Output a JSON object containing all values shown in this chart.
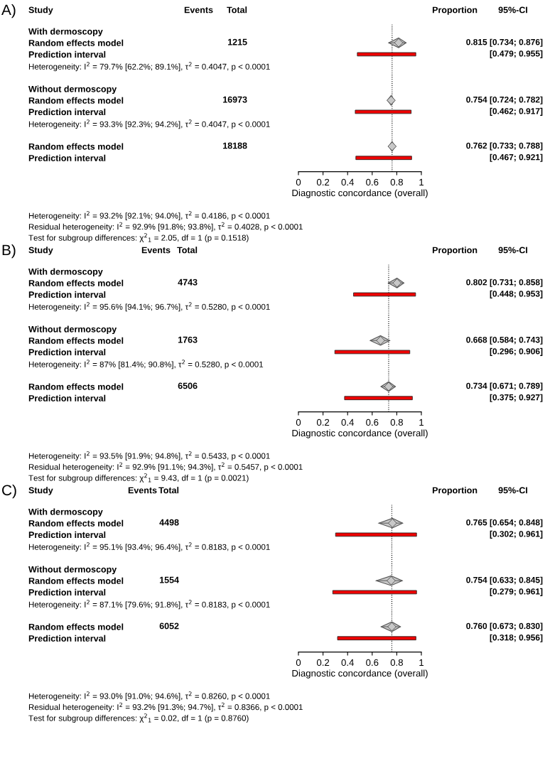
{
  "chart_data": [
    {
      "type": "scatter",
      "title": "A)",
      "orientation": "horizontal",
      "xlabel": "Diagnostic concordance (overall)",
      "xlim": [
        0,
        1
      ],
      "xticks": [
        0,
        0.2,
        0.4,
        0.6,
        0.8,
        1
      ],
      "categories": [
        "With dermoscopy",
        "Random effects model",
        "Prediction interval",
        "Heterogeneity: I$^{2}$ = 79.7% [62.2%; 89.1%], τ$^{2}$ = 0.4047, p < 0.0001",
        null,
        "Without dermoscopy",
        "Random effects model",
        "Prediction interval",
        "Heterogeneity: I$^{2}$ = 93.3% [92.3%; 94.2%], τ$^{2}$ = 0.4047, p < 0.0001",
        null,
        "Random effects model",
        "Prediction interval"
      ],
      "series": [
        {
          "marker": "diamond",
          "color": "#c8c8c8",
          "values": [
            null,
            0.815,
            null,
            null,
            null,
            null,
            0.754,
            null,
            null,
            null,
            0.762,
            null
          ],
          "errors": [
            null,
            [
              0.734,
              0.876
            ],
            null,
            null,
            null,
            null,
            [
              0.724,
              0.782
            ],
            null,
            null,
            null,
            [
              0.733,
              0.788
            ],
            null
          ],
          "value_labels": [
            null,
            "0.815 [0.734; 0.876]",
            null,
            null,
            null,
            null,
            "0.754 [0.724; 0.782]",
            null,
            null,
            null,
            "0.762 [0.733; 0.788]",
            null
          ]
        },
        {
          "type": "bar",
          "color": "#ee0000",
          "values": [
            null,
            null,
            0.476,
            null,
            null,
            null,
            null,
            0.455,
            null,
            null,
            null,
            0.454
          ],
          "base": [
            null,
            null,
            0.479,
            null,
            null,
            null,
            null,
            0.462,
            null,
            null,
            null,
            0.467
          ]
        }
      ],
      "ref_lines": [
        {
          "axis": "x",
          "value": 0.762,
          "color": "#000000",
          "line_style": "dotted"
        }
      ],
      "annotations": [
        "Study",
        "Events",
        "Total",
        "Proportion",
        "95%-CI",
        "1215",
        "16973",
        "18188",
        "[0.479; 0.955]",
        "[0.462; 0.917]",
        "[0.467; 0.921]",
        "Heterogeneity: I$^{2}$ = 93.2% [92.1%; 94.0%], τ$^{2}$ = 0.4186, p < 0.0001",
        "Residual heterogeneity: I$^{2}$ = 92.9% [91.8%; 93.8%], τ$^{2}$ = 0.4028, p < 0.0001",
        "Test for subgroup differences: χ$^{2}$$_{1}$ = 2.05, df = 1 (p = 0.1518)"
      ]
    },
    {
      "type": "scatter",
      "title": "B)",
      "orientation": "horizontal",
      "xlabel": "Diagnostic concordance (overall)",
      "xlim": [
        0,
        1
      ],
      "xticks": [
        0,
        0.2,
        0.4,
        0.6,
        0.8,
        1
      ],
      "categories": [
        "With dermoscopy",
        "Random effects model",
        "Prediction interval",
        "Heterogeneity: I$^{2}$ = 95.6% [94.1%; 96.7%], τ$^{2}$ = 0.5280, p < 0.0001",
        null,
        "Without dermoscopy",
        "Random effects model",
        "Prediction interval",
        "Heterogeneity: I$^{2}$ = 87% [81.4%; 90.8%], τ$^{2}$ = 0.5280, p < 0.0001",
        null,
        "Random effects model",
        "Prediction interval"
      ],
      "series": [
        {
          "marker": "diamond",
          "color": "#c8c8c8",
          "values": [
            null,
            0.802,
            null,
            null,
            null,
            null,
            0.668,
            null,
            null,
            null,
            0.734,
            null
          ],
          "errors": [
            null,
            [
              0.731,
              0.858
            ],
            null,
            null,
            null,
            null,
            [
              0.584,
              0.743
            ],
            null,
            null,
            null,
            [
              0.671,
              0.789
            ],
            null
          ],
          "value_labels": [
            null,
            "0.802 [0.731; 0.858]",
            null,
            null,
            null,
            null,
            "0.668 [0.584; 0.743]",
            null,
            null,
            null,
            "0.734 [0.671; 0.789]",
            null
          ]
        },
        {
          "type": "bar",
          "color": "#ee0000",
          "values": [
            null,
            null,
            0.505,
            null,
            null,
            null,
            null,
            0.61,
            null,
            null,
            null,
            0.552
          ],
          "base": [
            null,
            null,
            0.448,
            null,
            null,
            null,
            null,
            0.296,
            null,
            null,
            null,
            0.375
          ]
        }
      ],
      "ref_lines": [
        {
          "axis": "x",
          "value": 0.734,
          "color": "#000000",
          "line_style": "dotted"
        }
      ],
      "annotations": [
        "Study",
        "Events",
        "Total",
        "Proportion",
        "95%-CI",
        "4743",
        "1763",
        "6506",
        "[0.448; 0.953]",
        "[0.296; 0.906]",
        "[0.375; 0.927]",
        "Heterogeneity: I$^{2}$ = 93.5% [91.9%; 94.8%], τ$^{2}$ = 0.5433, p < 0.0001",
        "Residual heterogeneity: I$^{2}$ = 92.9% [91.1%; 94.3%], τ$^{2}$ = 0.5457, p < 0.0001",
        "Test for subgroup differences: χ$^{2}$$_{1}$ = 9.43, df = 1 (p = 0.0021)"
      ]
    },
    {
      "type": "scatter",
      "title": "C)",
      "orientation": "horizontal",
      "xlabel": "Diagnostic concordance (overall)",
      "xlim": [
        0,
        1
      ],
      "xticks": [
        0,
        0.2,
        0.4,
        0.6,
        0.8,
        1
      ],
      "categories": [
        "With dermoscopy",
        "Random effects model",
        "Prediction interval",
        "Heterogeneity: I$^{2}$ = 95.1% [93.4%; 96.4%], τ$^{2}$ = 0.8183, p < 0.0001",
        null,
        "Without dermoscopy",
        "Random effects model",
        "Prediction interval",
        "Heterogeneity: I$^{2}$ = 87.1% [79.6%; 91.8%], τ$^{2}$ = 0.8183, p < 0.0001",
        null,
        "Random effects model",
        "Prediction interval"
      ],
      "series": [
        {
          "marker": "diamond",
          "color": "#c8c8c8",
          "values": [
            null,
            0.765,
            null,
            null,
            null,
            null,
            0.754,
            null,
            null,
            null,
            0.76,
            null
          ],
          "errors": [
            null,
            [
              0.654,
              0.848
            ],
            null,
            null,
            null,
            null,
            [
              0.633,
              0.845
            ],
            null,
            null,
            null,
            [
              0.673,
              0.83
            ],
            null
          ],
          "value_labels": [
            null,
            "0.765 [0.654; 0.848]",
            null,
            null,
            null,
            null,
            "0.754 [0.633; 0.845]",
            null,
            null,
            null,
            "0.760 [0.673; 0.830]",
            null
          ]
        },
        {
          "type": "bar",
          "color": "#ee0000",
          "values": [
            null,
            null,
            0.659,
            null,
            null,
            null,
            null,
            0.682,
            null,
            null,
            null,
            0.638
          ],
          "base": [
            null,
            null,
            0.302,
            null,
            null,
            null,
            null,
            0.279,
            null,
            null,
            null,
            0.318
          ]
        }
      ],
      "ref_lines": [
        {
          "axis": "x",
          "value": 0.76,
          "color": "#000000",
          "line_style": "dotted"
        }
      ],
      "annotations": [
        "Study",
        "Events",
        "Total",
        "Proportion",
        "95%-CI",
        "4498",
        "1554",
        "6052",
        "[0.302; 0.961]",
        "[0.279; 0.961]",
        "[0.318; 0.956]",
        "Heterogeneity: I$^{2}$ = 93.0% [91.0%; 94.6%], τ$^{2}$ = 0.8260, p < 0.0001",
        "Residual heterogeneity: I$^{2}$ = 93.2% [91.3%; 94.7%], τ$^{2}$ = 0.8366, p < 0.0001",
        "Test for subgroup differences: χ$^{2}$$_{1}$ = 0.02, df = 1 (p = 0.8760)"
      ]
    }
  ]
}
